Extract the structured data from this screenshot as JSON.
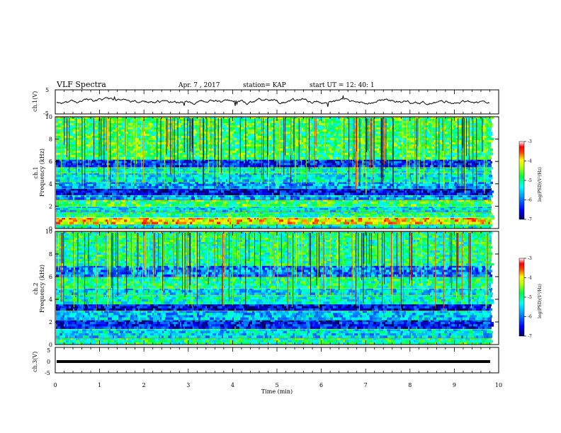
{
  "header": {
    "title": "VLF Spectra",
    "date": "Apr. 7  , 2017",
    "station": "station= KAP",
    "start": "start  UT  =   12: 40: 1"
  },
  "colors": {
    "trace": "#000000",
    "spectral_scale": [
      "#000080",
      "#0000ff",
      "#0080ff",
      "#00ffff",
      "#00ff80",
      "#80ff00",
      "#ffff00",
      "#ff8000",
      "#ff0000",
      "#ffffff"
    ]
  },
  "chart_data": [
    {
      "type": "line",
      "panel": "ch1-waveform",
      "ylabel": "ch.1(V)",
      "ylim": [
        -5,
        5
      ],
      "yticks": [
        "5",
        "-5"
      ],
      "xlim": [
        0,
        10
      ],
      "approx_range_V": [
        -2,
        2
      ]
    },
    {
      "type": "heatmap",
      "panel": "ch1-spectrogram",
      "ylabel_line1": "ch.1",
      "ylabel_line2": "Frequency  (kHz)",
      "ylim": [
        0,
        10
      ],
      "yticks": [
        "0",
        "2",
        "4",
        "6",
        "8",
        "10"
      ],
      "xlim": [
        0,
        10
      ],
      "colorbar": {
        "label": "log(PSD)(V²/Hz)",
        "ticks": [
          "-3",
          "-4",
          "-5",
          "-6",
          "-7"
        ],
        "range": [
          -7,
          -3
        ]
      },
      "bands_khz": [
        {
          "f": [
            0.0,
            0.4
          ],
          "level": 0.45
        },
        {
          "f": [
            0.4,
            1.0
          ],
          "level": 0.75
        },
        {
          "f": [
            1.0,
            1.5
          ],
          "level": 0.5
        },
        {
          "f": [
            1.5,
            2.0
          ],
          "level": 0.4
        },
        {
          "f": [
            2.0,
            2.6
          ],
          "level": 0.55
        },
        {
          "f": [
            2.6,
            3.0
          ],
          "level": 0.3
        },
        {
          "f": [
            3.0,
            3.6
          ],
          "level": 0.12
        },
        {
          "f": [
            3.6,
            4.2
          ],
          "level": 0.32
        },
        {
          "f": [
            4.2,
            5.0
          ],
          "level": 0.4
        },
        {
          "f": [
            5.0,
            5.5
          ],
          "level": 0.45
        },
        {
          "f": [
            5.5,
            6.2
          ],
          "level": 0.18
        },
        {
          "f": [
            6.2,
            10.0
          ],
          "level": 0.55
        }
      ]
    },
    {
      "type": "heatmap",
      "panel": "ch2-spectrogram",
      "ylabel_line1": "ch.2",
      "ylabel_line2": "Frequency  (kHz)",
      "ylim": [
        0,
        10
      ],
      "yticks": [
        "0",
        "2",
        "4",
        "6",
        "8",
        "10"
      ],
      "xlim": [
        0,
        10
      ],
      "colorbar": {
        "label": "log(PSD)(V²/Hz)",
        "ticks": [
          "-3",
          "-4",
          "-5",
          "-6",
          "-7"
        ],
        "range": [
          -7,
          -3
        ]
      },
      "bands_khz": [
        {
          "f": [
            0.0,
            0.6
          ],
          "level": 0.5
        },
        {
          "f": [
            0.6,
            1.4
          ],
          "level": 0.38
        },
        {
          "f": [
            1.4,
            2.2
          ],
          "level": 0.15
        },
        {
          "f": [
            2.2,
            3.0
          ],
          "level": 0.35
        },
        {
          "f": [
            3.0,
            3.6
          ],
          "level": 0.12
        },
        {
          "f": [
            3.6,
            4.4
          ],
          "level": 0.45
        },
        {
          "f": [
            4.4,
            5.0
          ],
          "level": 0.38
        },
        {
          "f": [
            5.0,
            6.0
          ],
          "level": 0.5
        },
        {
          "f": [
            6.0,
            7.0
          ],
          "level": 0.28
        },
        {
          "f": [
            7.0,
            10.0
          ],
          "level": 0.5
        }
      ]
    },
    {
      "type": "line",
      "panel": "ch3-waveform",
      "ylabel": "ch.3(V)",
      "ylim": [
        -5,
        5
      ],
      "yticks": [
        "5",
        "0",
        "-5"
      ],
      "xlim": [
        0,
        10
      ],
      "constant_V": 0
    }
  ],
  "xaxis": {
    "label": "Time  (min)",
    "ticks": [
      "0",
      "1",
      "2",
      "3",
      "4",
      "5",
      "6",
      "7",
      "8",
      "9",
      "10"
    ]
  }
}
